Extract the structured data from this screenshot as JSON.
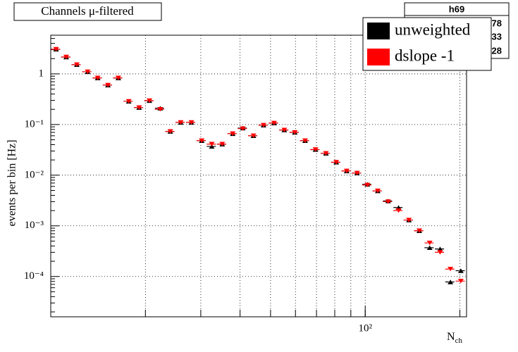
{
  "chart_data": {
    "type": "scatter",
    "title": "Channels μ-filtered",
    "ylabel": "events per bin [Hz]",
    "xlabel": "N",
    "xlabel_subscript": "ch",
    "log_x": true,
    "log_y": true,
    "grid": true,
    "xlim": [
      10,
      210
    ],
    "ylim": [
      1.6e-05,
      5.8
    ],
    "xticks": [
      {
        "value": 100,
        "label": "10²"
      }
    ],
    "xgrid": [
      20,
      30,
      40,
      50,
      60,
      70,
      80,
      90,
      100,
      200
    ],
    "yticks": [
      {
        "value": 0.0001,
        "label": "10⁻⁴"
      },
      {
        "value": 0.001,
        "label": "10⁻³"
      },
      {
        "value": 0.01,
        "label": "10⁻²"
      },
      {
        "value": 0.1,
        "label": "10⁻¹"
      },
      1
    ],
    "x": [
      10.4,
      11.2,
      12.1,
      13.1,
      14.1,
      15.2,
      16.4,
      17.7,
      19.1,
      20.6,
      22.3,
      24.0,
      25.9,
      28.0,
      30.2,
      32.5,
      35.1,
      37.9,
      40.8,
      44.1,
      47.5,
      51.3,
      55.3,
      59.7,
      64.4,
      69.5,
      75.0,
      80.9,
      87.3,
      94.2,
      101.6,
      109.6,
      118.3,
      127.6,
      137.7,
      148.6,
      160.3,
      173.0,
      186.6,
      201.4
    ],
    "series": [
      {
        "name": "unweighted",
        "color": "#000000",
        "marker": "triangle-up",
        "values": [
          3.06,
          2.15,
          1.52,
          1.1,
          0.83,
          0.6,
          0.83,
          0.287,
          0.216,
          0.296,
          0.21,
          0.073,
          0.11,
          0.11,
          0.048,
          0.037,
          0.041,
          0.066,
          0.085,
          0.06,
          0.097,
          0.107,
          0.078,
          0.07,
          0.048,
          0.032,
          0.027,
          0.018,
          0.0121,
          0.011,
          0.0066,
          0.0049,
          0.0031,
          0.0023,
          0.0013,
          0.0008,
          0.00037,
          0.00035,
          7.8e-05,
          0.00013
        ]
      },
      {
        "name": "dslope -1",
        "color": "#ff0000",
        "marker": "triangle-down",
        "values": [
          3.06,
          2.15,
          1.52,
          1.1,
          0.83,
          0.6,
          0.83,
          0.287,
          0.216,
          0.296,
          0.2,
          0.073,
          0.11,
          0.11,
          0.048,
          0.041,
          0.041,
          0.066,
          0.083,
          0.06,
          0.097,
          0.107,
          0.078,
          0.07,
          0.048,
          0.032,
          0.027,
          0.018,
          0.0121,
          0.011,
          0.0064,
          0.0049,
          0.003,
          0.002,
          0.0013,
          0.0008,
          0.00046,
          0.0003,
          0.00014,
          8.1e-05
        ]
      }
    ],
    "stats_box": {
      "title": "h69",
      "lines": [
        "78",
        "33",
        "28"
      ]
    }
  }
}
